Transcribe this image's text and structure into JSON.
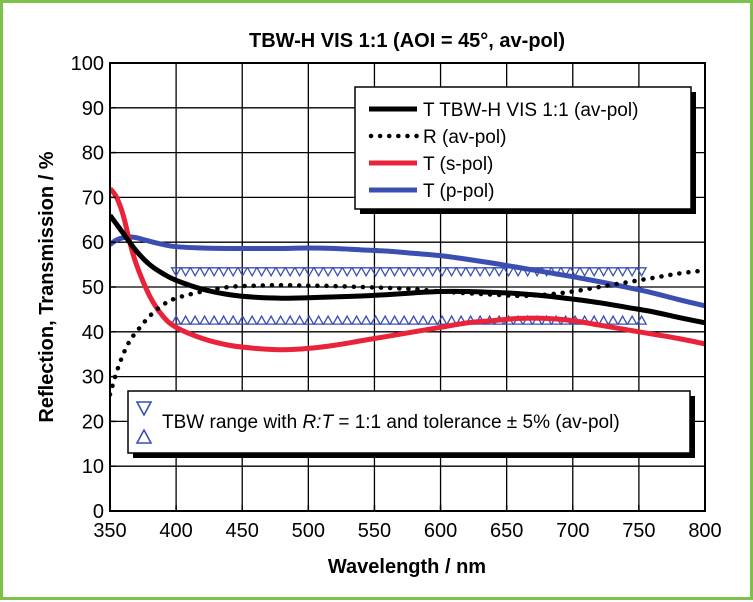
{
  "chart_data": {
    "type": "line",
    "title": "TBW-H VIS 1:1 (AOI = 45°, av-pol)",
    "xlabel": "Wavelength / nm",
    "ylabel": "Reflection, Transmission / %",
    "xlim": [
      350,
      800
    ],
    "ylim": [
      0,
      100
    ],
    "x_ticks": [
      350,
      400,
      450,
      500,
      550,
      600,
      650,
      700,
      750,
      800
    ],
    "y_ticks": [
      0,
      10,
      20,
      30,
      40,
      50,
      60,
      70,
      80,
      90,
      100
    ],
    "grid": true,
    "legend_position": "top-right",
    "series": [
      {
        "name": "T TBW-H VIS 1:1 (av-pol)",
        "color": "#000000",
        "style": "solid",
        "x": [
          350,
          360,
          370,
          380,
          390,
          400,
          420,
          440,
          460,
          480,
          500,
          520,
          540,
          560,
          580,
          600,
          620,
          640,
          660,
          680,
          700,
          720,
          740,
          760,
          780,
          800
        ],
        "y": [
          66,
          62,
          58,
          55,
          53,
          51.5,
          49.5,
          48.3,
          47.7,
          47.5,
          47.6,
          47.8,
          48,
          48.3,
          48.7,
          49,
          49,
          48.8,
          48.5,
          48,
          47.3,
          46.5,
          45.5,
          44.5,
          43.2,
          42
        ]
      },
      {
        "name": "R (av-pol)",
        "color": "#000000",
        "style": "dotted",
        "x": [
          350,
          355,
          360,
          365,
          370,
          380,
          390,
          400,
          420,
          440,
          460,
          480,
          500,
          520,
          540,
          560,
          580,
          600,
          620,
          640,
          660,
          680,
          700,
          720,
          740,
          760,
          780,
          800
        ],
        "y": [
          26,
          31,
          35,
          38,
          40,
          43.5,
          46,
          47.5,
          49,
          50,
          50.3,
          50.4,
          50.3,
          50.2,
          50,
          49.8,
          49.5,
          49,
          48.6,
          48.3,
          48,
          48.3,
          49,
          50,
          51,
          52,
          53,
          53.7
        ]
      },
      {
        "name": "T (s-pol)",
        "color": "#e8233a",
        "style": "solid",
        "x": [
          350,
          355,
          360,
          365,
          370,
          380,
          390,
          400,
          420,
          440,
          460,
          480,
          500,
          520,
          540,
          560,
          580,
          600,
          620,
          640,
          660,
          680,
          700,
          720,
          740,
          760,
          780,
          800
        ],
        "y": [
          72,
          70,
          66,
          60,
          55,
          48,
          43.5,
          41,
          38.5,
          37,
          36.3,
          36,
          36.3,
          37,
          38,
          39,
          40,
          41,
          42,
          42.5,
          43,
          43,
          42.5,
          41.5,
          40.5,
          39.5,
          38.5,
          37.3
        ]
      },
      {
        "name": "T (p-pol)",
        "color": "#3b4fb3",
        "style": "solid",
        "x": [
          350,
          355,
          360,
          365,
          370,
          380,
          390,
          400,
          420,
          440,
          460,
          480,
          500,
          520,
          540,
          560,
          580,
          600,
          620,
          640,
          660,
          680,
          700,
          720,
          740,
          760,
          780,
          800
        ],
        "y": [
          59.5,
          60.5,
          61,
          61.2,
          61,
          60.2,
          59.5,
          59,
          58.7,
          58.6,
          58.6,
          58.6,
          58.7,
          58.6,
          58.3,
          58,
          57.5,
          57,
          56.2,
          55.3,
          54.3,
          53.3,
          52.3,
          51.2,
          50,
          48.7,
          47.2,
          45.8
        ]
      }
    ],
    "tbw_range": {
      "label": "TBW range with R:T = 1:1 and tolerance ± 5% (av-pol)",
      "label_parts": [
        "TBW range with ",
        "R:T",
        " = 1:1 and tolerance ± 5% (av-pol)"
      ],
      "x_start": 400,
      "x_end": 755,
      "upper": 52.5,
      "lower": 43.5,
      "color": "#3b4fb3"
    }
  }
}
